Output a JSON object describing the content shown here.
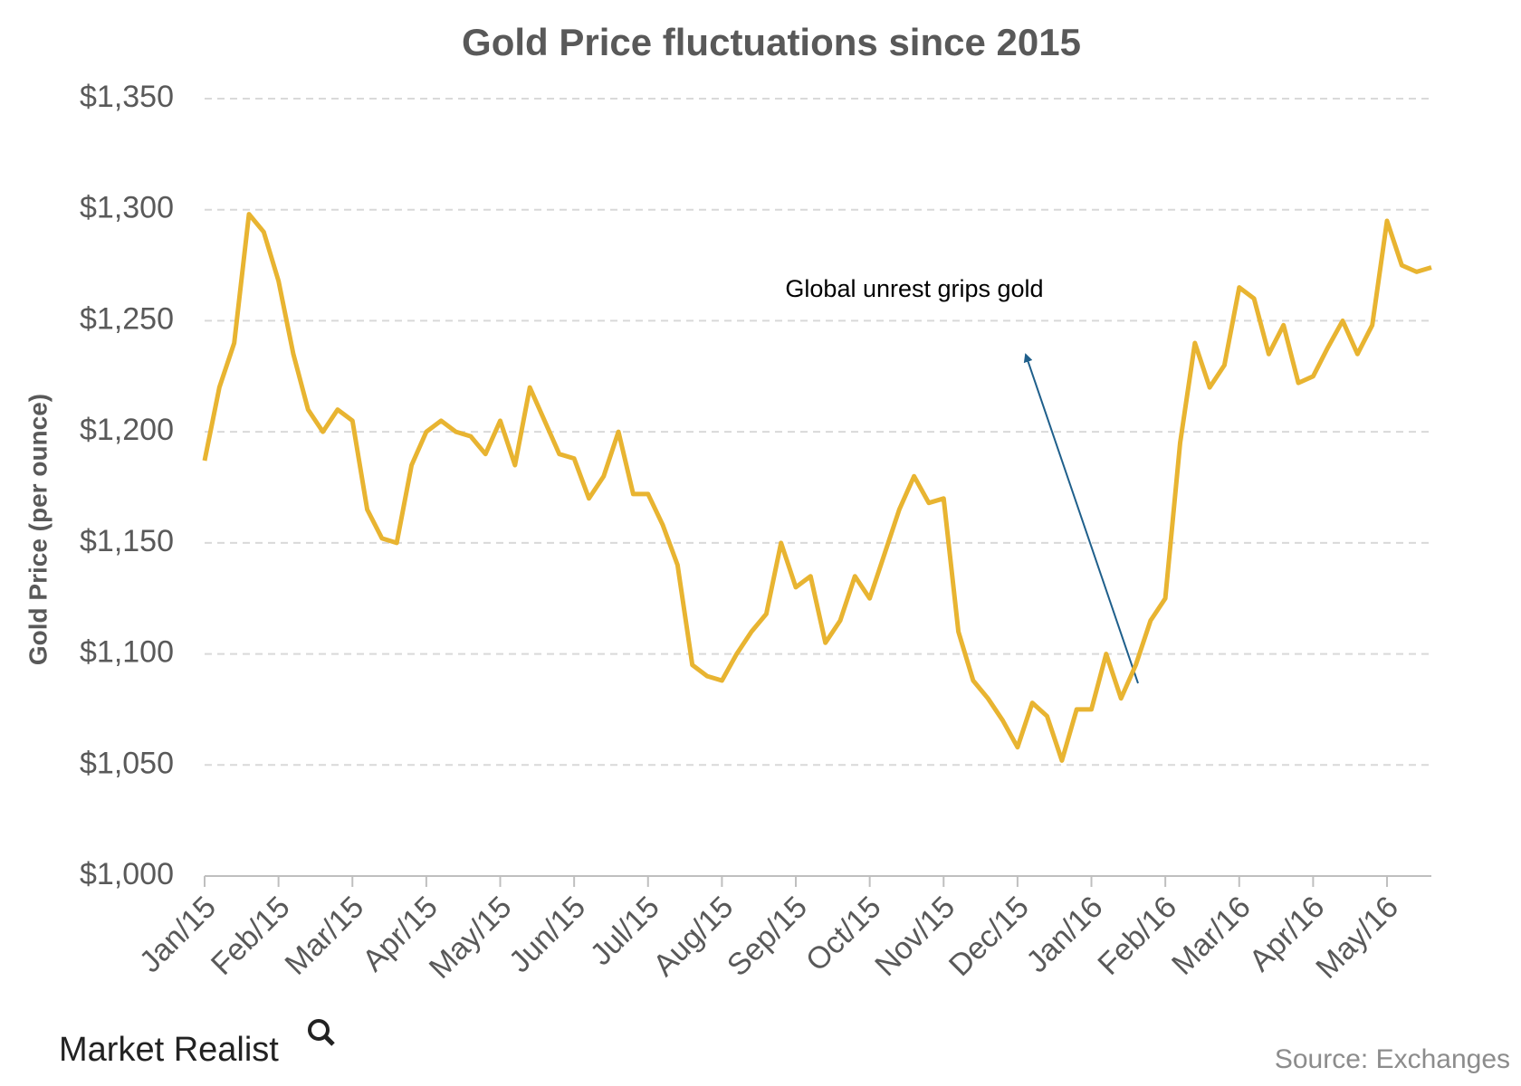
{
  "chart_data": {
    "type": "line",
    "title": "Gold Price fluctuations since 2015",
    "y_label": "Gold Price (per ounce)",
    "annotation": "Global unrest grips gold",
    "source": "Source: Exchanges",
    "brand": "Market Realist",
    "categories": [
      "Jan/15",
      null,
      null,
      null,
      null,
      "Feb/15",
      null,
      null,
      null,
      null,
      "Mar/15",
      null,
      null,
      null,
      null,
      "Apr/15",
      null,
      null,
      null,
      null,
      "May/15",
      null,
      null,
      null,
      null,
      "Jun/15",
      null,
      null,
      null,
      null,
      "Jul/15",
      null,
      null,
      null,
      null,
      "Aug/15",
      null,
      null,
      null,
      null,
      "Sep/15",
      null,
      null,
      null,
      null,
      "Oct/15",
      null,
      null,
      null,
      null,
      "Nov/15",
      null,
      null,
      null,
      null,
      "Dec/15",
      null,
      null,
      null,
      null,
      "Jan/16",
      null,
      null,
      null,
      null,
      "Feb/16",
      null,
      null,
      null,
      null,
      "Mar/16",
      null,
      null,
      null,
      null,
      "Apr/16",
      null,
      null,
      null,
      null,
      "May/16",
      null,
      null,
      null
    ],
    "series": [
      {
        "name": "Gold Price",
        "color": "#e8b431",
        "values": [
          1187,
          1220,
          1240,
          1298,
          1290,
          1268,
          1235,
          1210,
          1200,
          1210,
          1205,
          1165,
          1152,
          1150,
          1185,
          1200,
          1205,
          1200,
          1198,
          1190,
          1205,
          1185,
          1220,
          1205,
          1190,
          1188,
          1170,
          1180,
          1200,
          1172,
          1172,
          1158,
          1140,
          1095,
          1090,
          1088,
          1100,
          1110,
          1118,
          1150,
          1130,
          1135,
          1105,
          1115,
          1135,
          1125,
          1145,
          1165,
          1180,
          1168,
          1170,
          1110,
          1088,
          1080,
          1070,
          1058,
          1078,
          1072,
          1052,
          1075,
          1075,
          1100,
          1080,
          1095,
          1115,
          1125,
          1195,
          1240,
          1220,
          1230,
          1265,
          1260,
          1235,
          1248,
          1222,
          1225,
          1238,
          1250,
          1235,
          1248,
          1295,
          1275,
          1272,
          1274
        ]
      }
    ],
    "ylim": [
      1000,
      1350
    ],
    "yticks": [
      {
        "value": 1000,
        "label": "$1,000"
      },
      {
        "value": 1050,
        "label": "$1,050"
      },
      {
        "value": 1100,
        "label": "$1,100"
      },
      {
        "value": 1150,
        "label": "$1,150"
      },
      {
        "value": 1200,
        "label": "$1,200"
      },
      {
        "value": 1250,
        "label": "$1,250"
      },
      {
        "value": 1300,
        "label": "$1,300"
      },
      {
        "value": 1350,
        "label": "$1,350"
      }
    ],
    "grid": true
  }
}
